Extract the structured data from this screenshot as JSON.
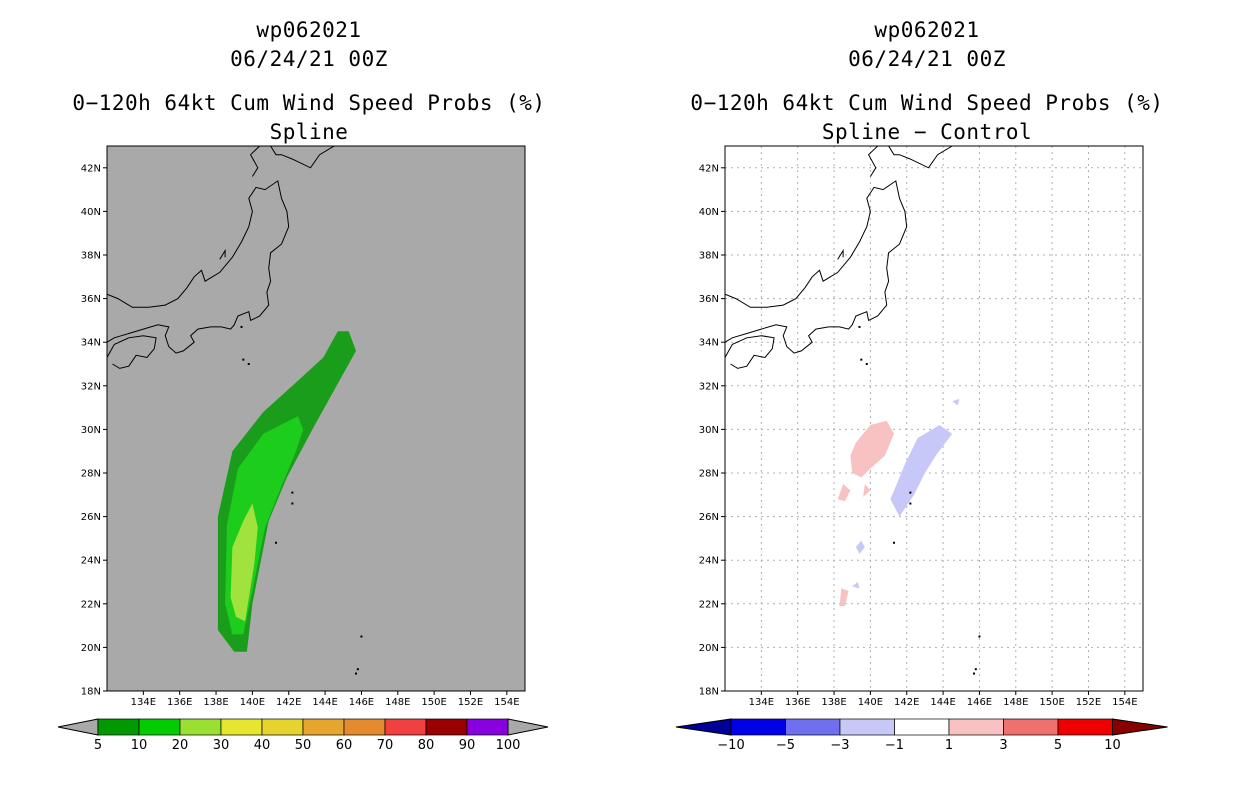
{
  "chart_data": [
    {
      "type": "heatmap",
      "panel": "left",
      "title_lines": [
        "wp062021",
        "06/24/21 00Z",
        "0−120h 64kt Cum Wind Speed Probs (%)",
        "Spline"
      ],
      "lon_ticks": [
        "134E",
        "136E",
        "138E",
        "140E",
        "142E",
        "144E",
        "146E",
        "148E",
        "150E",
        "152E",
        "154E"
      ],
      "lat_ticks": [
        "42N",
        "40N",
        "38N",
        "36N",
        "34N",
        "32N",
        "30N",
        "28N",
        "26N",
        "24N",
        "22N",
        "20N",
        "18N"
      ],
      "lon_range": [
        132.0,
        155.0
      ],
      "lat_range": [
        18.0,
        43.0
      ],
      "background_color": "#a9a9a9",
      "colorbar": {
        "labels": [
          "5",
          "10",
          "20",
          "30",
          "40",
          "50",
          "60",
          "70",
          "80",
          "90",
          "100"
        ],
        "colors": [
          "#009900",
          "#00cc00",
          "#99e033",
          "#e6e62e",
          "#e6d42e",
          "#e6a62e",
          "#e68a2e",
          "#f04040",
          "#990000",
          "#8800dd"
        ],
        "extension_color": "#a9a9a9"
      },
      "contours": [
        {
          "level": "5-10",
          "color": "#1a9d1a",
          "points": [
            [
              138.1,
              22.0
            ],
            [
              138.1,
              26.0
            ],
            [
              138.9,
              29.0
            ],
            [
              140.6,
              30.8
            ],
            [
              142.2,
              32.0
            ],
            [
              143.9,
              33.3
            ],
            [
              144.7,
              34.5
            ],
            [
              145.3,
              34.5
            ],
            [
              145.7,
              33.6
            ],
            [
              144.9,
              32.4
            ],
            [
              143.3,
              30.0
            ],
            [
              141.9,
              27.8
            ],
            [
              140.9,
              25.8
            ],
            [
              140.0,
              22.0
            ],
            [
              139.7,
              19.8
            ],
            [
              139.0,
              19.8
            ],
            [
              138.1,
              20.8
            ]
          ]
        },
        {
          "level": "10-20",
          "color": "#1ccd1c",
          "points": [
            [
              138.5,
              22.0
            ],
            [
              138.6,
              25.6
            ],
            [
              139.2,
              28.2
            ],
            [
              140.6,
              29.8
            ],
            [
              142.5,
              30.6
            ],
            [
              142.8,
              30.0
            ],
            [
              142.4,
              29.0
            ],
            [
              141.6,
              27.4
            ],
            [
              140.7,
              25.5
            ],
            [
              140.0,
              22.6
            ],
            [
              139.5,
              20.6
            ],
            [
              138.9,
              20.6
            ]
          ]
        },
        {
          "level": "20-30",
          "color": "#a0e33e",
          "points": [
            [
              138.8,
              22.3
            ],
            [
              138.9,
              24.6
            ],
            [
              139.5,
              25.8
            ],
            [
              140.0,
              26.6
            ],
            [
              140.3,
              25.5
            ],
            [
              140.1,
              23.8
            ],
            [
              139.6,
              21.2
            ],
            [
              139.1,
              21.4
            ]
          ]
        }
      ]
    },
    {
      "type": "heatmap",
      "panel": "right",
      "title_lines": [
        "wp062021",
        "06/24/21 00Z",
        "0−120h 64kt Cum Wind Speed Probs (%)",
        "Spline − Control"
      ],
      "lon_ticks": [
        "134E",
        "136E",
        "138E",
        "140E",
        "142E",
        "144E",
        "146E",
        "148E",
        "150E",
        "152E",
        "154E"
      ],
      "lat_ticks": [
        "42N",
        "40N",
        "38N",
        "36N",
        "34N",
        "32N",
        "30N",
        "28N",
        "26N",
        "24N",
        "22N",
        "20N",
        "18N"
      ],
      "lon_range": [
        132.0,
        155.0
      ],
      "lat_range": [
        18.0,
        43.0
      ],
      "background_color": "#ffffff",
      "grid": true,
      "colorbar": {
        "labels": [
          "−10",
          "−5",
          "−3",
          "−1",
          "1",
          "3",
          "5",
          "10"
        ],
        "colors": [
          "#0000e6",
          "#6f6ff0",
          "#c8c8f8",
          "#ffffff",
          "#f8c2c2",
          "#f07070",
          "#ee0000"
        ],
        "left_extension_color": "#000099",
        "right_extension_color": "#880000"
      },
      "contours": [
        {
          "level": "-3 to -1",
          "color": "#c8c8f8",
          "points": [
            [
              141.9,
              28.4
            ],
            [
              142.6,
              29.6
            ],
            [
              143.8,
              30.2
            ],
            [
              144.5,
              29.8
            ],
            [
              143.6,
              28.8
            ],
            [
              143.0,
              28.0
            ],
            [
              142.4,
              27.0
            ],
            [
              141.6,
              26.0
            ],
            [
              141.1,
              26.8
            ],
            [
              141.5,
              27.6
            ]
          ]
        },
        {
          "level": "-3 to -1",
          "color": "#c8c8f8",
          "points": [
            [
              144.5,
              31.3
            ],
            [
              144.9,
              31.4
            ],
            [
              144.8,
              31.1
            ]
          ]
        },
        {
          "level": "-3 to -1",
          "color": "#c8c8f8",
          "points": [
            [
              139.2,
              24.6
            ],
            [
              139.5,
              24.9
            ],
            [
              139.7,
              24.6
            ],
            [
              139.4,
              24.3
            ]
          ]
        },
        {
          "level": "-3 to -1",
          "color": "#c8c8f8",
          "points": [
            [
              139.0,
              22.8
            ],
            [
              139.3,
              23.0
            ],
            [
              139.4,
              22.7
            ]
          ]
        },
        {
          "level": "1 to 3",
          "color": "#f8c2c2",
          "points": [
            [
              139.2,
              29.4
            ],
            [
              140.0,
              30.2
            ],
            [
              140.9,
              30.4
            ],
            [
              141.3,
              29.8
            ],
            [
              140.8,
              28.8
            ],
            [
              140.0,
              28.2
            ],
            [
              139.5,
              27.8
            ],
            [
              139.0,
              28.0
            ],
            [
              138.9,
              28.8
            ]
          ]
        },
        {
          "level": "1 to 3",
          "color": "#f8c2c2",
          "points": [
            [
              138.2,
              26.8
            ],
            [
              138.5,
              27.5
            ],
            [
              138.9,
              27.2
            ],
            [
              138.6,
              26.7
            ]
          ]
        },
        {
          "level": "1 to 3",
          "color": "#f8c2c2",
          "points": [
            [
              138.3,
              21.9
            ],
            [
              138.4,
              22.7
            ],
            [
              138.8,
              22.6
            ],
            [
              138.6,
              21.9
            ]
          ]
        },
        {
          "level": "1 to 3",
          "color": "#f8c2c2",
          "points": [
            [
              139.6,
              26.9
            ],
            [
              139.7,
              27.5
            ],
            [
              140.0,
              27.2
            ]
          ]
        }
      ]
    }
  ]
}
